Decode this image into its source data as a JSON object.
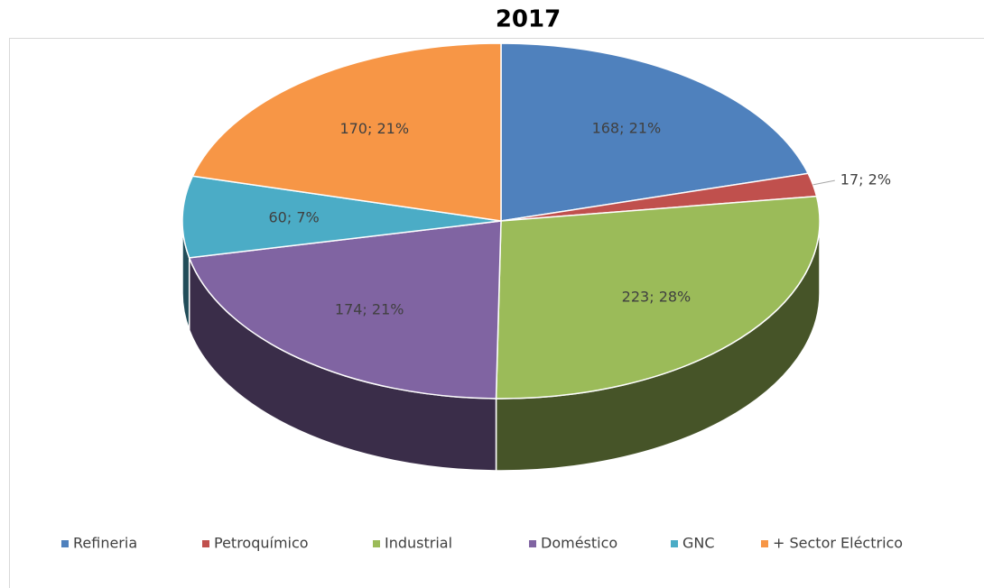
{
  "chart_data": {
    "type": "pie",
    "title": "2017",
    "categories": [
      "Refineria",
      "Petroquímico",
      "Industrial",
      "Doméstico",
      "GNC",
      "+ Sector Eléctrico"
    ],
    "values": [
      168,
      17,
      223,
      174,
      60,
      170
    ],
    "value_labels": [
      "168; 21%",
      "17; 2%",
      "223; 28%",
      "174; 21%",
      "60; 7%",
      "170; 21%"
    ],
    "colors": [
      "#4f81bd",
      "#c0504d",
      "#9bbb59",
      "#8064a2",
      "#4bacc6",
      "#f79646"
    ],
    "legend": "bottom",
    "three_d": true
  }
}
